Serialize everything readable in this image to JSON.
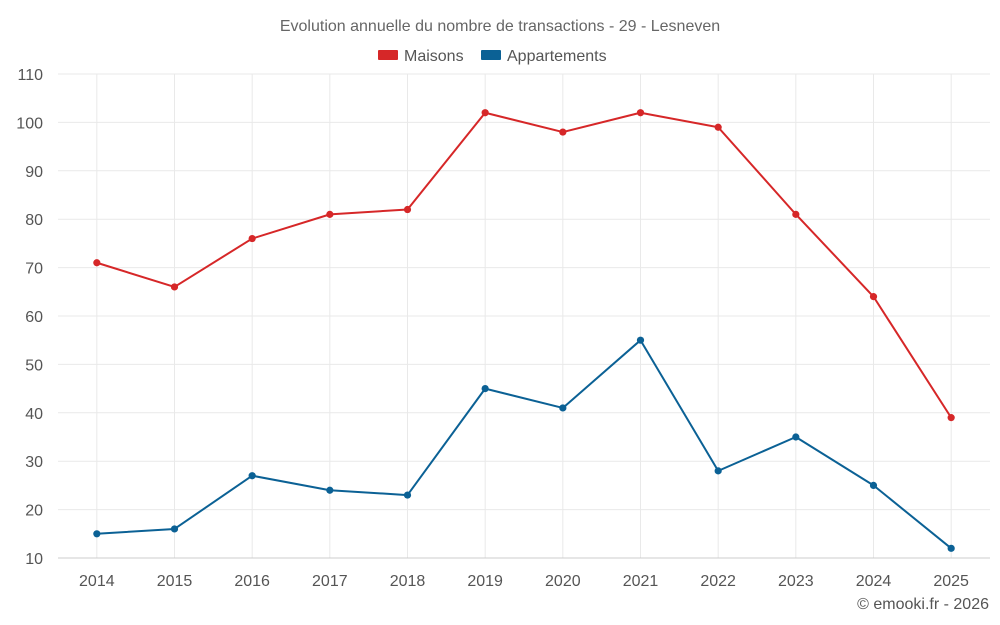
{
  "chart_data": {
    "type": "line",
    "title": "Evolution annuelle du nombre de transactions - 29 - Lesneven",
    "categories": [
      "2014",
      "2015",
      "2016",
      "2017",
      "2018",
      "2019",
      "2020",
      "2021",
      "2022",
      "2023",
      "2024",
      "2025"
    ],
    "series": [
      {
        "name": "Maisons",
        "color": "#d62728",
        "values": [
          71,
          66,
          76,
          81,
          82,
          102,
          98,
          102,
          99,
          81,
          64,
          39
        ]
      },
      {
        "name": "Appartements",
        "color": "#0b6195",
        "values": [
          15,
          16,
          27,
          24,
          23,
          45,
          41,
          55,
          28,
          35,
          25,
          12
        ]
      }
    ],
    "ylim": [
      10,
      110
    ],
    "yticks": [
      10,
      20,
      30,
      40,
      50,
      60,
      70,
      80,
      90,
      100,
      110
    ],
    "grid": true,
    "legend": "top-center",
    "xlabel": "",
    "ylabel": ""
  },
  "credit": "© emooki.fr - 2026"
}
